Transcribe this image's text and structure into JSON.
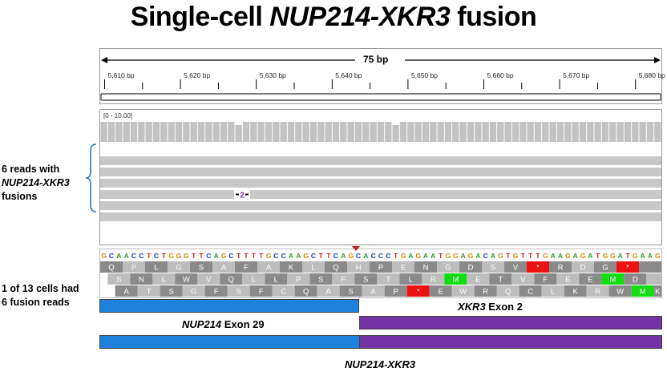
{
  "title": {
    "prefix": "Single-cell ",
    "gene": "NUP214-XKR3",
    "suffix": " fusion"
  },
  "left_labels": {
    "reads_line1": "6 reads with",
    "reads_gene": "NUP214-XKR3",
    "reads_line3": "fusions",
    "cells_line1": "1 of 13 cells had",
    "cells_line2": "6 fusion reads"
  },
  "ruler": {
    "span_label": "75 bp",
    "ticks": [
      "5,610 bp",
      "5,620 bp",
      "5,630 bp",
      "5,640 bp",
      "5,650 bp",
      "5,660 bp",
      "5,670 bp",
      "5,680 bp"
    ]
  },
  "coverage": {
    "range_label": "[0 - 10.00]"
  },
  "reads": {
    "count": 6,
    "insertion_label": "2"
  },
  "sequence": "GCAACCTCTGGGTTCAGCTTTTGCCAAGCTTCAGCACCCTGAGAATGGAGACAGTGTTTGAAGAGATGGATGAAG",
  "base_colors": {
    "A": "#2e9e2e",
    "C": "#1a3ccc",
    "G": "#d48a00",
    "T": "#d11d1d"
  },
  "translation_frames": [
    [
      "Q",
      "P",
      "L",
      "G",
      "S",
      "A",
      "F",
      "A",
      "K",
      "L",
      "Q",
      "H",
      "P",
      "E",
      "N",
      "G",
      "D",
      "S",
      "V",
      "*",
      "R",
      "D",
      "G",
      "*",
      ""
    ],
    [
      "S",
      "N",
      "L",
      "W",
      "V",
      "Q",
      "L",
      "L",
      "P",
      "S",
      "F",
      "S",
      "T",
      "L",
      "R",
      "M",
      "E",
      "T",
      "V",
      "F",
      "E",
      "E",
      "M",
      "D",
      ""
    ],
    [
      "A",
      "T",
      "S",
      "G",
      "F",
      "S",
      "F",
      "C",
      "Q",
      "A",
      "S",
      "A",
      "P",
      "*",
      "E",
      "W",
      "R",
      "Q",
      "C",
      "L",
      "K",
      "R",
      "W",
      "M",
      "K"
    ]
  ],
  "colors": {
    "exon_nup214": "#1e82dc",
    "exon_xkr3": "#7233a3",
    "stop_codon": "#ee1111",
    "start_codon": "#11dd11",
    "read_gray": "#c8c8c8",
    "brace": "#2878c0",
    "breakpoint": "#c02020"
  },
  "exons": {
    "nup214_gene": "NUP214",
    "nup214_exon": " Exon 29",
    "xkr3_gene": "XKR3",
    "xkr3_exon": " Exon 2"
  },
  "fusion_label": "NUP214-XKR3"
}
